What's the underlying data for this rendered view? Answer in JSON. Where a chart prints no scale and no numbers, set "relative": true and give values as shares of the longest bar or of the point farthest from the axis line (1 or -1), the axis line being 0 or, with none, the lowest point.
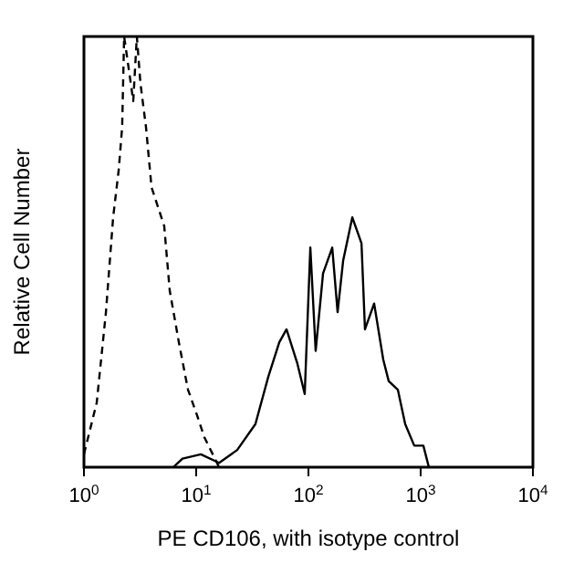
{
  "chart_data": {
    "type": "line",
    "relative": true,
    "log": "x",
    "xlabel": "PE CD106, with isotype control",
    "ylabel": "Relative Cell Number",
    "xlim": [
      1,
      10000
    ],
    "xticks": [
      {
        "value": 1,
        "label": "10$^{0}$"
      },
      {
        "value": 10,
        "label": "10$^{1}$"
      },
      {
        "value": 100,
        "label": "10$^{2}$"
      },
      {
        "value": 1000,
        "label": "10$^{3}$"
      },
      {
        "value": 10000,
        "label": "10$^{4}$"
      }
    ],
    "series": [
      {
        "color": "#000000",
        "line_style": "dashed",
        "x": [
          1,
          1.3,
          1.57,
          1.82,
          2.04,
          2.19,
          2.28,
          2.46,
          2.75,
          2.96,
          3.19,
          3.57,
          4.0,
          5.19,
          5.81,
          7.01,
          8.45,
          10.2,
          11.8,
          16.0
        ],
        "values": [
          0.03,
          0.15,
          0.36,
          0.58,
          0.69,
          0.79,
          1.0,
          0.94,
          0.85,
          1.0,
          0.89,
          0.79,
          0.65,
          0.56,
          0.41,
          0.29,
          0.18,
          0.12,
          0.07,
          0.0
        ]
      },
      {
        "color": "#000000",
        "line_style": "solid",
        "x": [
          6.26,
          7.55,
          11.0,
          16.0,
          23.2,
          33.7,
          43.9,
          55.0,
          63.8,
          79.8,
          92.7,
          104,
          116,
          135,
          163,
          182,
          204,
          246,
          297,
          319,
          385,
          464,
          519,
          626,
          728,
          877,
          1057,
          1183
        ],
        "values": [
          0,
          0.02,
          0.03,
          0.01,
          0.04,
          0.1,
          0.21,
          0.29,
          0.32,
          0.24,
          0.17,
          0.51,
          0.27,
          0.45,
          0.51,
          0.36,
          0.48,
          0.58,
          0.52,
          0.32,
          0.38,
          0.25,
          0.2,
          0.18,
          0.1,
          0.05,
          0.05,
          0.0
        ]
      }
    ]
  }
}
